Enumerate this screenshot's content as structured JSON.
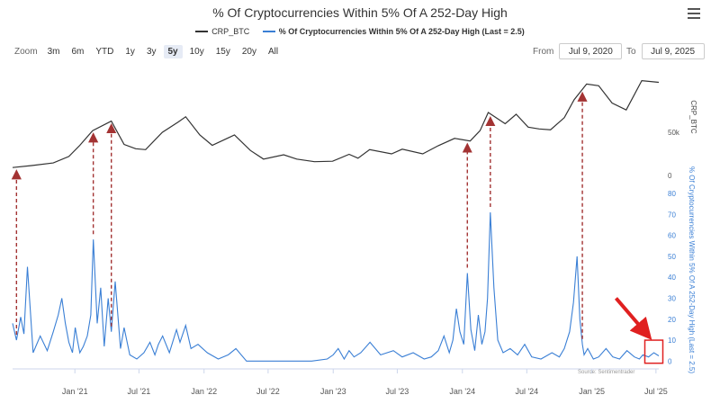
{
  "title": "% Of Cryptocurrencies Within 5% Of A 252-Day High",
  "menu_icon": "hamburger-menu-icon",
  "zoom": {
    "label": "Zoom",
    "buttons": [
      "3m",
      "6m",
      "YTD",
      "1y",
      "3y",
      "5y",
      "10y",
      "15y",
      "20y",
      "All"
    ],
    "active": "5y"
  },
  "range": {
    "from_label": "From",
    "from_value": "Jul 9, 2020",
    "to_label": "To",
    "to_value": "Jul 9, 2025"
  },
  "source": "Source: Sentimentrader",
  "colors": {
    "price": "#333333",
    "pct": "#3a7fd5",
    "arrow": "#a33333",
    "highlight": "#e02020"
  },
  "chart_data": {
    "type": "line",
    "title": "% Of Cryptocurrencies Within 5% Of A 252-Day High",
    "x_ticks": [
      "Jan '21",
      "Jul '21",
      "Jan '22",
      "Jul '22",
      "Jan '23",
      "Jul '23",
      "Jan '24",
      "Jul '24",
      "Jan '25",
      "Jul '25"
    ],
    "x_range": [
      "2020-07-09",
      "2025-07-09"
    ],
    "series": [
      {
        "name": "CRP_BTC",
        "axis": "upper-right",
        "axis_label": "CRP_BTC",
        "axis_ticks": [
          0,
          "50k"
        ],
        "ylim": [
          0,
          120000
        ],
        "x": [
          "2020-07-09",
          "2020-09-01",
          "2020-11-01",
          "2020-12-15",
          "2021-01-15",
          "2021-02-20",
          "2021-04-14",
          "2021-05-20",
          "2021-06-22",
          "2021-07-20",
          "2021-09-05",
          "2021-10-20",
          "2021-11-10",
          "2021-12-20",
          "2022-01-24",
          "2022-03-28",
          "2022-05-12",
          "2022-06-18",
          "2022-08-14",
          "2022-09-20",
          "2022-11-09",
          "2022-12-30",
          "2023-02-15",
          "2023-03-12",
          "2023-04-14",
          "2023-06-15",
          "2023-07-15",
          "2023-09-11",
          "2023-10-25",
          "2023-12-10",
          "2024-01-23",
          "2024-02-20",
          "2024-03-14",
          "2024-05-01",
          "2024-06-01",
          "2024-07-05",
          "2024-08-05",
          "2024-09-06",
          "2024-10-15",
          "2024-11-12",
          "2024-12-17",
          "2025-01-20",
          "2025-02-27",
          "2025-04-08",
          "2025-05-22",
          "2025-07-09"
        ],
        "values": [
          9200,
          11500,
          14500,
          22000,
          35000,
          52000,
          63000,
          36000,
          31000,
          30000,
          50000,
          62000,
          68000,
          47000,
          35000,
          47000,
          29000,
          19000,
          24000,
          19000,
          16000,
          16500,
          24500,
          20000,
          30000,
          25000,
          30500,
          25000,
          34500,
          43000,
          40000,
          52000,
          73000,
          60000,
          71000,
          56000,
          54000,
          53000,
          67000,
          88000,
          106000,
          104000,
          84000,
          76000,
          110000,
          108000
        ]
      },
      {
        "name": "% Of Cryptocurrencies Within 5% Of A 252-Day High (Last = 2.5)",
        "axis": "lower-right",
        "axis_label": "% Of Cryptocurrencies Within 5% Of A 252-Day High (Last = 2.5)",
        "axis_ticks": [
          0,
          10,
          20,
          30,
          40,
          50,
          60,
          70,
          80
        ],
        "ylim": [
          -2,
          80
        ],
        "x": [
          "2020-07-09",
          "2020-07-20",
          "2020-08-01",
          "2020-08-10",
          "2020-08-20",
          "2020-09-05",
          "2020-09-25",
          "2020-10-15",
          "2020-11-01",
          "2020-11-15",
          "2020-11-25",
          "2020-12-05",
          "2020-12-15",
          "2020-12-25",
          "2021-01-02",
          "2021-01-08",
          "2021-01-15",
          "2021-01-25",
          "2021-02-05",
          "2021-02-15",
          "2021-02-22",
          "2021-03-05",
          "2021-03-15",
          "2021-03-25",
          "2021-04-05",
          "2021-04-14",
          "2021-04-25",
          "2021-05-10",
          "2021-05-20",
          "2021-06-05",
          "2021-06-25",
          "2021-07-15",
          "2021-08-01",
          "2021-08-15",
          "2021-08-25",
          "2021-09-06",
          "2021-09-25",
          "2021-10-15",
          "2021-10-25",
          "2021-11-10",
          "2021-11-25",
          "2021-12-15",
          "2022-01-10",
          "2022-02-10",
          "2022-03-10",
          "2022-04-01",
          "2022-05-01",
          "2022-07-01",
          "2022-09-01",
          "2022-11-01",
          "2022-12-15",
          "2023-01-01",
          "2023-01-15",
          "2023-02-01",
          "2023-02-15",
          "2023-03-01",
          "2023-03-20",
          "2023-04-15",
          "2023-05-15",
          "2023-06-20",
          "2023-07-15",
          "2023-08-15",
          "2023-09-15",
          "2023-10-05",
          "2023-10-25",
          "2023-11-10",
          "2023-11-25",
          "2023-12-05",
          "2023-12-15",
          "2023-12-25",
          "2024-01-05",
          "2024-01-15",
          "2024-01-25",
          "2024-02-05",
          "2024-02-15",
          "2024-02-25",
          "2024-03-05",
          "2024-03-12",
          "2024-03-20",
          "2024-03-30",
          "2024-04-10",
          "2024-04-25",
          "2024-05-15",
          "2024-06-05",
          "2024-06-25",
          "2024-07-15",
          "2024-08-10",
          "2024-09-10",
          "2024-10-01",
          "2024-10-15",
          "2024-10-30",
          "2024-11-10",
          "2024-11-20",
          "2024-11-28",
          "2024-12-05",
          "2024-12-10",
          "2024-12-20",
          "2025-01-05",
          "2025-01-20",
          "2025-02-10",
          "2025-03-01",
          "2025-03-20",
          "2025-04-10",
          "2025-05-01",
          "2025-05-15",
          "2025-05-25",
          "2025-06-10",
          "2025-06-25",
          "2025-07-09"
        ],
        "values": [
          18,
          10,
          21,
          13,
          45,
          4,
          12,
          5,
          14,
          22,
          30,
          18,
          9,
          4,
          16,
          10,
          4,
          7,
          12,
          22,
          58,
          18,
          35,
          7,
          30,
          14,
          38,
          6,
          16,
          3,
          1,
          4,
          9,
          3,
          8,
          12,
          4,
          15,
          9,
          17,
          6,
          8,
          4,
          1,
          3,
          6,
          0,
          0,
          0,
          0,
          1,
          3,
          6,
          1,
          5,
          2,
          4,
          9,
          3,
          5,
          2,
          4,
          1,
          2,
          5,
          12,
          4,
          10,
          25,
          14,
          8,
          42,
          15,
          5,
          22,
          8,
          14,
          30,
          71,
          35,
          10,
          4,
          6,
          3,
          8,
          2,
          1,
          4,
          2,
          6,
          14,
          28,
          50,
          20,
          8,
          3,
          6,
          1,
          2,
          6,
          2,
          1,
          5,
          2,
          1,
          3,
          2,
          4,
          2.5
        ]
      }
    ],
    "annotations": [
      {
        "type": "arrow",
        "date": "2020-07-20",
        "description": "dashed arrow from percent spike to price"
      },
      {
        "type": "arrow",
        "date": "2021-02-22",
        "description": "dashed arrow from percent spike to price"
      },
      {
        "type": "arrow",
        "date": "2021-04-14",
        "description": "dashed arrow from percent spike to price"
      },
      {
        "type": "arrow",
        "date": "2024-01-15",
        "description": "dashed arrow from percent spike to price"
      },
      {
        "type": "arrow",
        "date": "2024-03-20",
        "description": "dashed arrow from percent spike to price"
      },
      {
        "type": "arrow",
        "date": "2024-12-05",
        "description": "dashed arrow from percent spike to price"
      },
      {
        "type": "highlight-box",
        "date": "2025-06-25",
        "description": "red box around latest reading with red pointer arrow"
      }
    ],
    "grid": false,
    "legend": "top-center"
  }
}
